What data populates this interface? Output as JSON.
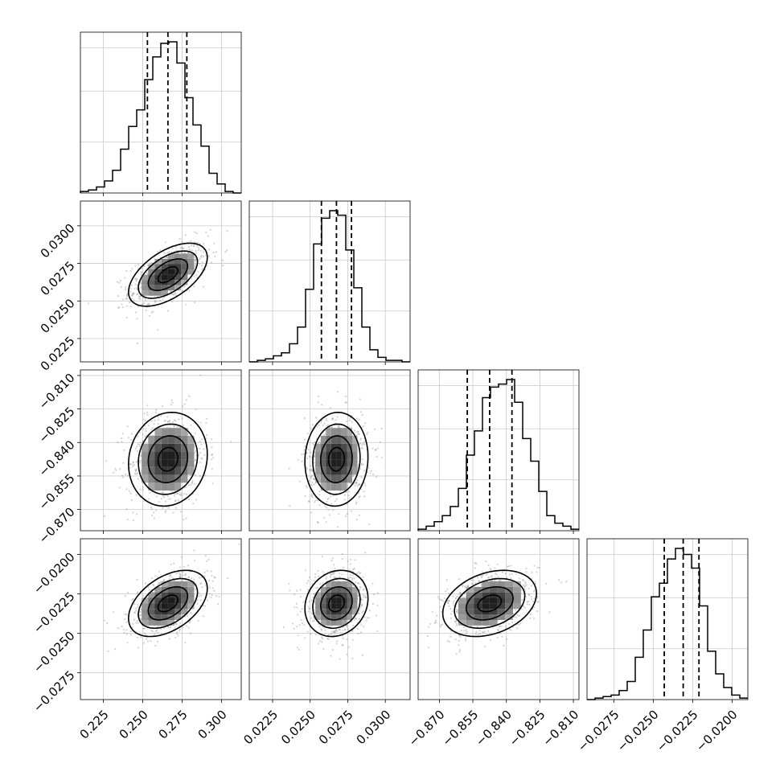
{
  "chart_data": {
    "type": "corner",
    "parameters": [
      {
        "lim": [
          0.2105,
          0.3125
        ],
        "ticks": [
          0.225,
          0.25,
          0.275,
          0.3
        ],
        "tick_labels": [
          "0.225",
          "0.250",
          "0.275",
          "0.300"
        ],
        "mean": 0.266,
        "sd": 0.0125,
        "quantiles": [
          0.253,
          0.266,
          0.278
        ],
        "hist_counts": [
          0.01,
          0.02,
          0.04,
          0.08,
          0.15,
          0.29,
          0.44,
          0.55,
          0.75,
          0.9,
          0.99,
          1.0,
          0.86,
          0.63,
          0.45,
          0.31,
          0.13,
          0.06,
          0.01,
          0.0
        ]
      },
      {
        "lim": [
          0.02095,
          0.03165
        ],
        "ticks": [
          0.0225,
          0.025,
          0.0275,
          0.03
        ],
        "tick_labels": [
          "0.0225",
          "0.0250",
          "0.0275",
          "0.0300"
        ],
        "mean": 0.02675,
        "sd": 0.00105,
        "quantiles": [
          0.02575,
          0.02675,
          0.02775
        ],
        "hist_counts": [
          0.0,
          0.01,
          0.02,
          0.04,
          0.06,
          0.12,
          0.23,
          0.48,
          0.78,
          0.95,
          1.0,
          0.97,
          0.74,
          0.49,
          0.23,
          0.08,
          0.03,
          0.01,
          0.01,
          0.0
        ]
      },
      {
        "lim": [
          -0.8795,
          -0.8075
        ],
        "ticks": [
          -0.87,
          -0.855,
          -0.84,
          -0.825,
          -0.81
        ],
        "tick_labels": [
          "−0.870",
          "−0.855",
          "−0.840",
          "−0.825",
          "−0.810"
        ],
        "mean": -0.8475,
        "sd": 0.0105,
        "quantiles": [
          -0.8575,
          -0.8475,
          -0.8375
        ],
        "hist_counts": [
          0.01,
          0.03,
          0.06,
          0.1,
          0.16,
          0.28,
          0.5,
          0.66,
          0.88,
          0.95,
          0.97,
          1.0,
          0.85,
          0.61,
          0.46,
          0.26,
          0.1,
          0.05,
          0.03,
          0.01
        ]
      },
      {
        "lim": [
          -0.0292,
          -0.019
        ],
        "ticks": [
          -0.0275,
          -0.025,
          -0.0225,
          -0.02
        ],
        "tick_labels": [
          "−0.0275",
          "−0.0250",
          "−0.0225",
          "−0.0200"
        ],
        "mean": -0.0231,
        "sd": 0.00105,
        "quantiles": [
          -0.0243,
          -0.0231,
          -0.0221
        ],
        "hist_counts": [
          0.0,
          0.01,
          0.02,
          0.03,
          0.06,
          0.12,
          0.28,
          0.46,
          0.68,
          0.77,
          0.93,
          1.0,
          0.96,
          0.87,
          0.62,
          0.32,
          0.17,
          0.08,
          0.03,
          0.01
        ]
      }
    ],
    "correlations": {
      "1-0": 0.55,
      "2-0": 0.1,
      "2-1": 0.05,
      "3-0": 0.45,
      "3-1": 0.15,
      "3-2": 0.3
    },
    "contour_levels_sigma": [
      0.5,
      1.0,
      1.5,
      2.0
    ],
    "grid": true,
    "legend": "none"
  }
}
